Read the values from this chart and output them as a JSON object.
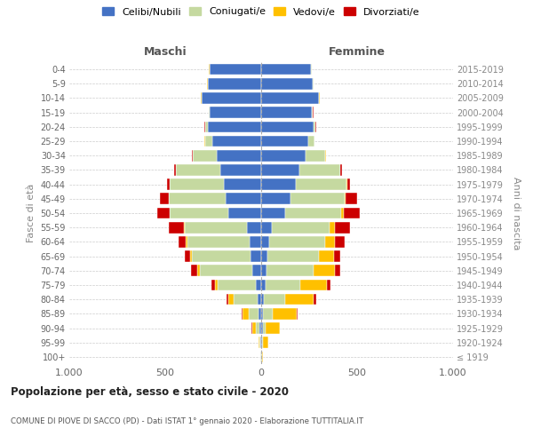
{
  "age_groups": [
    "100+",
    "95-99",
    "90-94",
    "85-89",
    "80-84",
    "75-79",
    "70-74",
    "65-69",
    "60-64",
    "55-59",
    "50-54",
    "45-49",
    "40-44",
    "35-39",
    "30-34",
    "25-29",
    "20-24",
    "15-19",
    "10-14",
    "5-9",
    "0-4"
  ],
  "birth_years": [
    "≤ 1919",
    "1920-1924",
    "1925-1929",
    "1930-1934",
    "1935-1939",
    "1940-1944",
    "1945-1949",
    "1950-1954",
    "1955-1959",
    "1960-1964",
    "1965-1969",
    "1970-1974",
    "1975-1979",
    "1980-1984",
    "1985-1989",
    "1990-1994",
    "1995-1999",
    "2000-2004",
    "2005-2009",
    "2010-2014",
    "2015-2019"
  ],
  "maschi": {
    "celibi": [
      2,
      3,
      8,
      12,
      20,
      30,
      48,
      55,
      60,
      75,
      170,
      185,
      195,
      215,
      230,
      255,
      278,
      268,
      308,
      278,
      268
    ],
    "coniugati": [
      2,
      6,
      22,
      55,
      125,
      195,
      272,
      305,
      325,
      325,
      305,
      295,
      280,
      230,
      125,
      38,
      14,
      5,
      4,
      2,
      2
    ],
    "vedovi": [
      1,
      5,
      18,
      28,
      28,
      18,
      14,
      10,
      8,
      5,
      3,
      2,
      1,
      1,
      1,
      1,
      1,
      1,
      1,
      1,
      1
    ],
    "divorziati": [
      0,
      0,
      2,
      5,
      9,
      18,
      32,
      28,
      38,
      78,
      62,
      48,
      14,
      9,
      4,
      2,
      2,
      1,
      1,
      1,
      1
    ]
  },
  "femmine": {
    "nubili": [
      2,
      3,
      7,
      9,
      13,
      22,
      28,
      32,
      42,
      57,
      125,
      155,
      180,
      200,
      230,
      245,
      272,
      265,
      300,
      270,
      260
    ],
    "coniugate": [
      2,
      4,
      18,
      52,
      112,
      180,
      245,
      270,
      290,
      300,
      290,
      280,
      265,
      210,
      105,
      32,
      11,
      4,
      3,
      2,
      2
    ],
    "vedove": [
      3,
      28,
      72,
      125,
      150,
      140,
      110,
      78,
      52,
      28,
      14,
      7,
      3,
      2,
      1,
      1,
      1,
      1,
      1,
      1,
      1
    ],
    "divorziate": [
      0,
      0,
      2,
      4,
      11,
      18,
      28,
      32,
      52,
      78,
      87,
      57,
      14,
      7,
      3,
      1,
      1,
      1,
      1,
      1,
      1
    ]
  },
  "colors": {
    "celibi": "#4472c4",
    "coniugati": "#c5d9a0",
    "vedovi": "#ffc000",
    "divorziati": "#cc0000"
  },
  "xlim": 1000,
  "title": "Popolazione per età, sesso e stato civile - 2020",
  "subtitle": "COMUNE DI PIOVE DI SACCO (PD) - Dati ISTAT 1° gennaio 2020 - Elaborazione TUTTITALIA.IT",
  "ylabel_left": "Fasce di età",
  "ylabel_right": "Anni di nascita",
  "legend_labels": [
    "Celibi/Nubili",
    "Coniugati/e",
    "Vedovi/e",
    "Divorziati/e"
  ],
  "maschi_label": "Maschi",
  "femmine_label": "Femmine",
  "xtick_labels": [
    "1.000",
    "500",
    "0",
    "500",
    "1.000"
  ]
}
